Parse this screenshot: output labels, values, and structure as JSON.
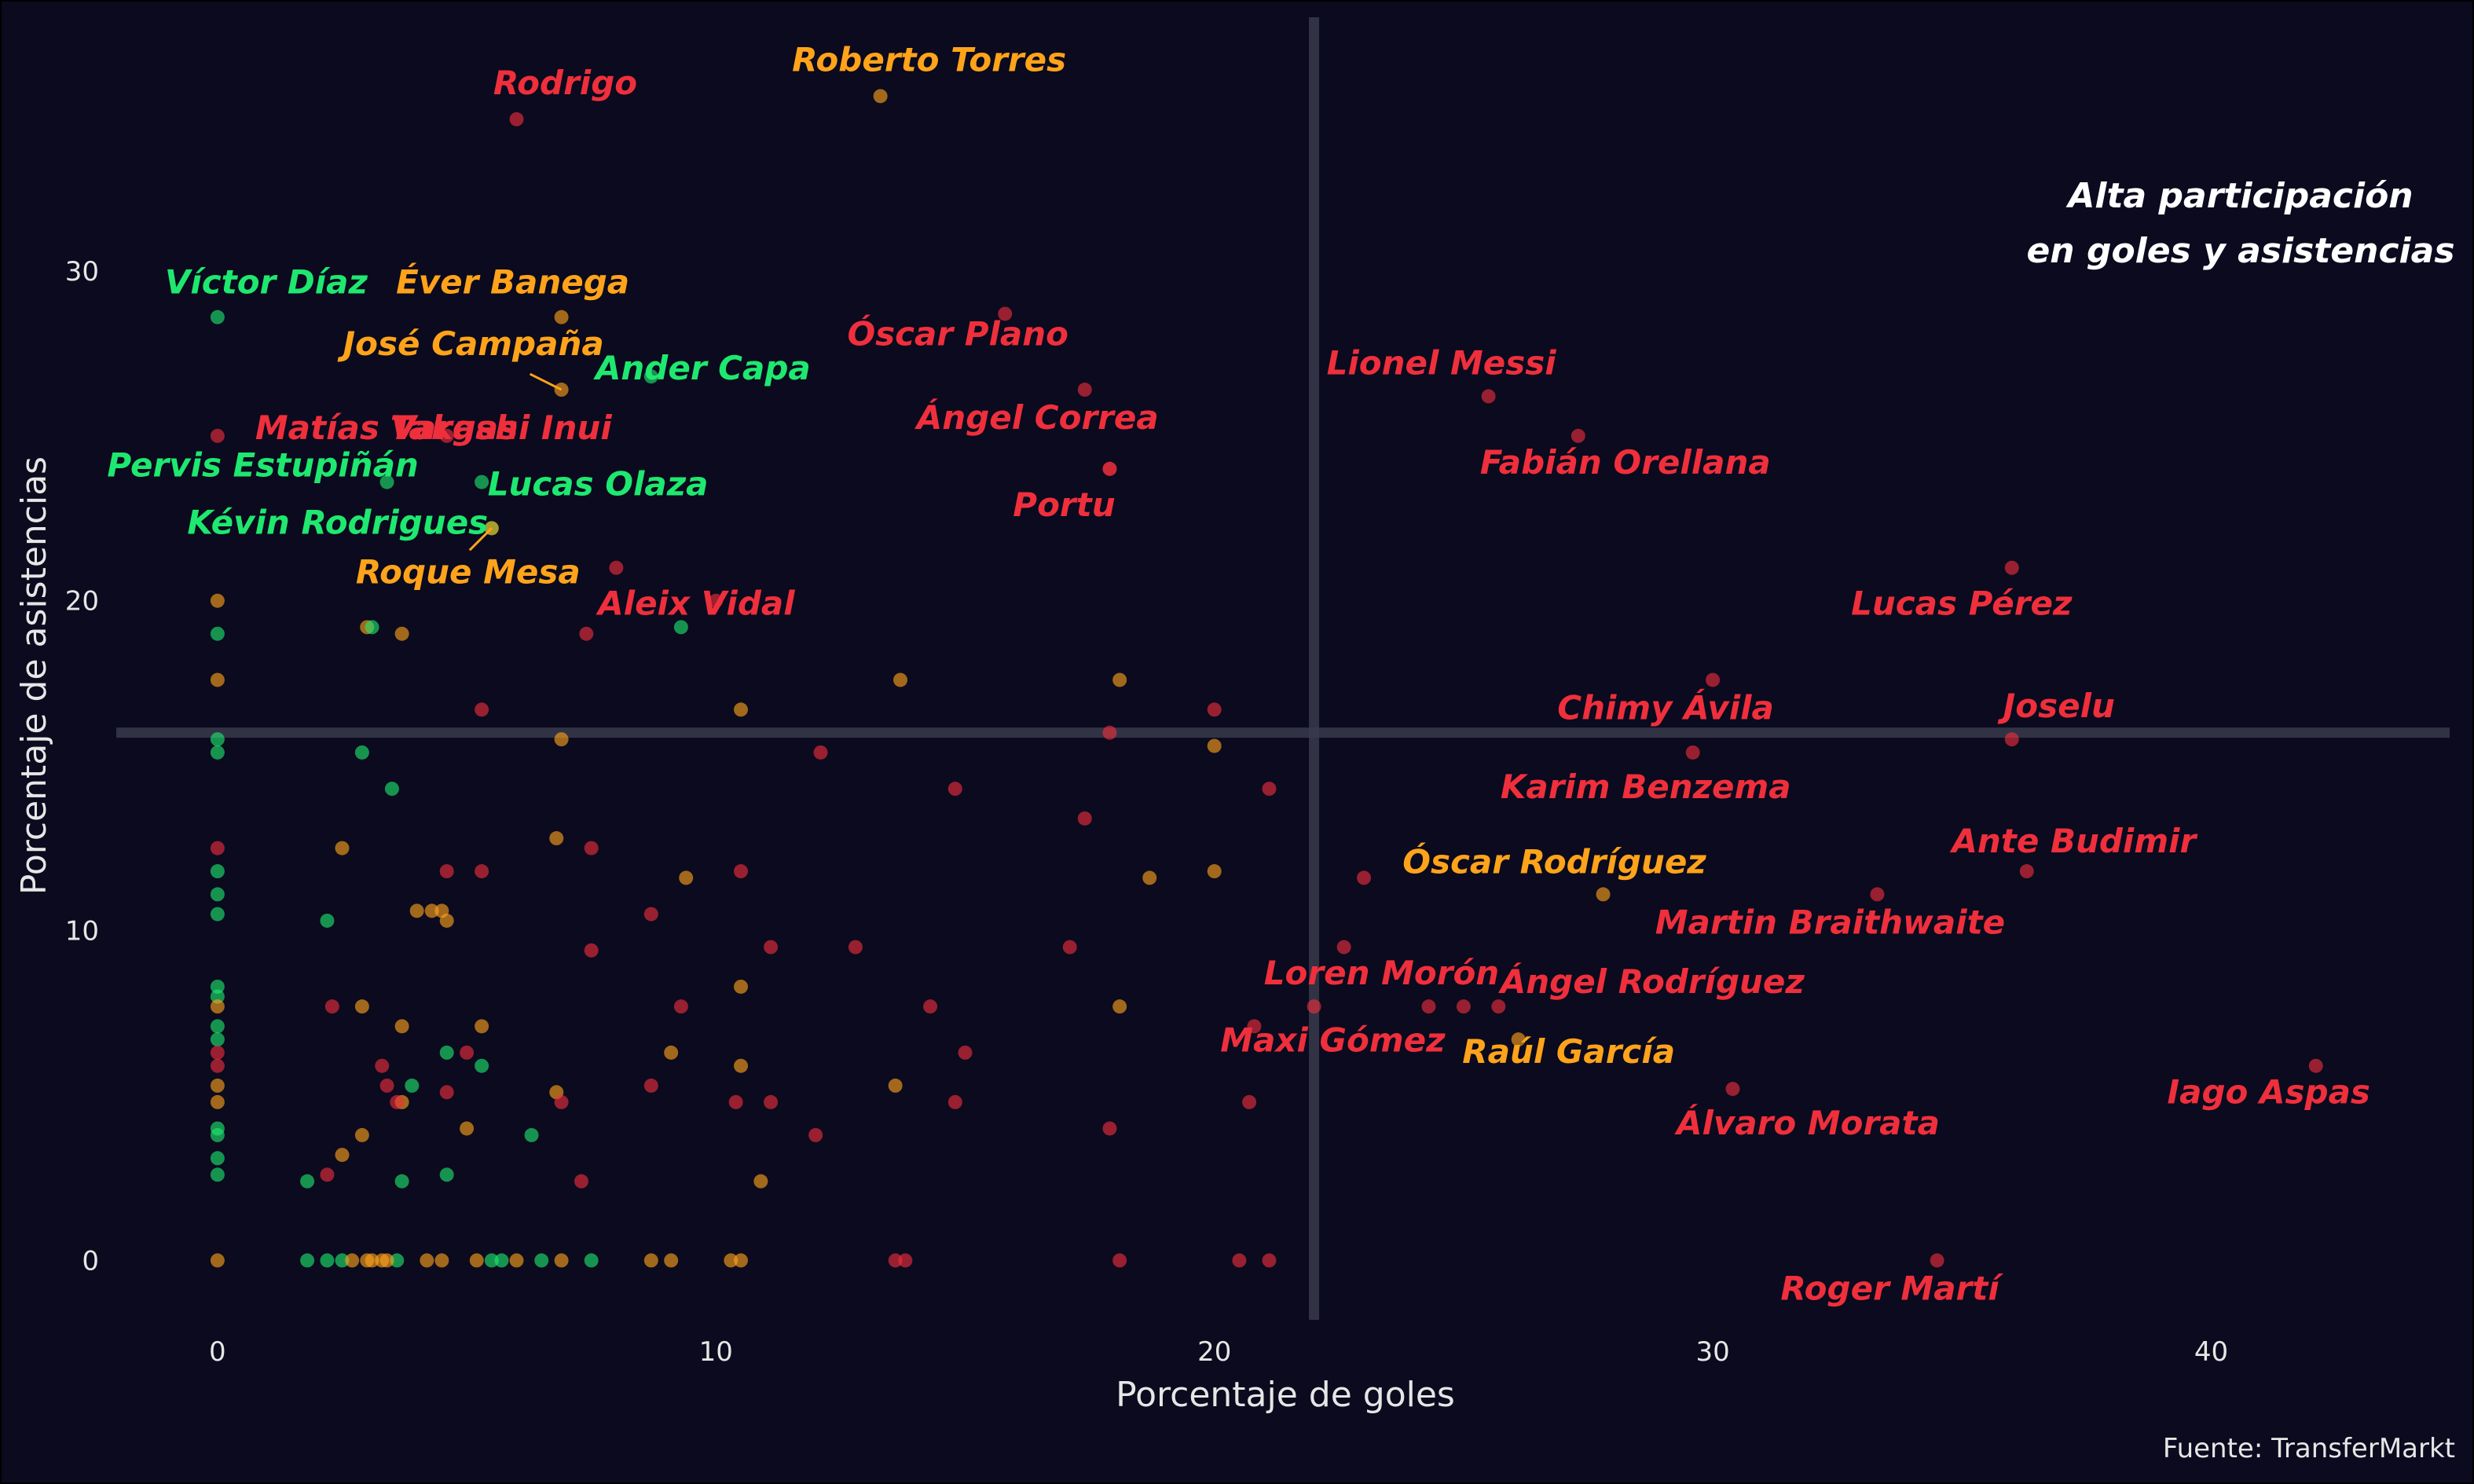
{
  "chart_data": {
    "type": "scatter",
    "xlabel": "Porcentaje de goles",
    "ylabel": "Porcentaje de asistencias",
    "xlim": [
      -2,
      44.5
    ],
    "ylim": [
      -1.8,
      37.5
    ],
    "x_ticks": [
      0,
      10,
      20,
      30,
      40
    ],
    "y_ticks": [
      0,
      10,
      20,
      30
    ],
    "grid": false,
    "reference_lines": {
      "x": 22,
      "y": 16
    },
    "annotation": [
      "Alta participación",
      "en goles y asistencias"
    ],
    "caption": "Fuente: TransferMarkt",
    "colors": {
      "red": "#ef2f3c",
      "orange": "#ffa31a",
      "green": "#1ee86f",
      "background": "#0b0a1e"
    },
    "labeled_points": [
      {
        "name": "Roberto Torres",
        "x": 13.3,
        "y": 35.3,
        "color": "orange"
      },
      {
        "name": "Rodrigo",
        "x": 6.0,
        "y": 34.6,
        "color": "red"
      },
      {
        "name": "Víctor Díaz",
        "x": 0.0,
        "y": 28.6,
        "color": "green"
      },
      {
        "name": "Éver Banega",
        "x": 6.9,
        "y": 28.6,
        "color": "orange"
      },
      {
        "name": "Óscar Plano",
        "x": 15.8,
        "y": 28.7,
        "color": "red"
      },
      {
        "name": "José Campaña",
        "x": 6.9,
        "y": 26.4,
        "color": "orange"
      },
      {
        "name": "Ander Capa",
        "x": 8.7,
        "y": 26.8,
        "color": "green"
      },
      {
        "name": "Lionel Messi",
        "x": 25.5,
        "y": 26.2,
        "color": "red"
      },
      {
        "name": "Ángel Correa",
        "x": 17.4,
        "y": 26.4,
        "color": "red"
      },
      {
        "name": "Matías Vargas",
        "x": 0.0,
        "y": 25.0,
        "color": "red"
      },
      {
        "name": "Takashi Inui",
        "x": 4.6,
        "y": 25.0,
        "color": "red"
      },
      {
        "name": "Fabián Orellana",
        "x": 27.3,
        "y": 25.0,
        "color": "red"
      },
      {
        "name": "Pervis Estupiñán",
        "x": 3.4,
        "y": 23.6,
        "color": "green"
      },
      {
        "name": "Lucas Olaza",
        "x": 5.3,
        "y": 23.6,
        "color": "green"
      },
      {
        "name": "Portu",
        "x": 17.9,
        "y": 24.0,
        "color": "red"
      },
      {
        "name": "Kévin Rodrigues",
        "x": 5.5,
        "y": 22.2,
        "color": "green"
      },
      {
        "name": "Roque Mesa",
        "x": 5.5,
        "y": 22.2,
        "color": "orange"
      },
      {
        "name": "Aleix Vidal",
        "x": 8.0,
        "y": 21.0,
        "color": "red"
      },
      {
        "name": "Lucas Pérez",
        "x": 36.0,
        "y": 21.0,
        "color": "red"
      },
      {
        "name": "Chimy Ávila",
        "x": 30.0,
        "y": 17.6,
        "color": "red"
      },
      {
        "name": "Joselu",
        "x": 36.0,
        "y": 15.8,
        "color": "red"
      },
      {
        "name": "Karim Benzema",
        "x": 29.6,
        "y": 15.4,
        "color": "red"
      },
      {
        "name": "Ante Budimir",
        "x": 36.3,
        "y": 11.8,
        "color": "red"
      },
      {
        "name": "Óscar Rodríguez",
        "x": 27.8,
        "y": 11.1,
        "color": "orange"
      },
      {
        "name": "Martin Braithwaite",
        "x": 33.3,
        "y": 11.1,
        "color": "red"
      },
      {
        "name": "Loren Morón",
        "x": 24.3,
        "y": 7.7,
        "color": "red"
      },
      {
        "name": "Ángel Rodríguez",
        "x": 25.7,
        "y": 7.7,
        "color": "red"
      },
      {
        "name": "Maxi Gómez",
        "x": 20.8,
        "y": 7.1,
        "color": "red"
      },
      {
        "name": "Raúl García",
        "x": 26.1,
        "y": 6.7,
        "color": "orange"
      },
      {
        "name": "Iago Aspas",
        "x": 42.1,
        "y": 5.9,
        "color": "red"
      },
      {
        "name": "Álvaro Morata",
        "x": 30.4,
        "y": 5.2,
        "color": "red"
      },
      {
        "name": "Roger Martí",
        "x": 34.5,
        "y": 0.0,
        "color": "red"
      }
    ],
    "points": [
      {
        "x": 22.0,
        "y": 7.7,
        "color": "red"
      },
      {
        "x": 22.6,
        "y": 9.5,
        "color": "red"
      },
      {
        "x": 23.0,
        "y": 11.6,
        "color": "red"
      },
      {
        "x": 25.0,
        "y": 7.7,
        "color": "red"
      },
      {
        "x": 20.0,
        "y": 16.7,
        "color": "red"
      },
      {
        "x": 21.1,
        "y": 14.3,
        "color": "red"
      },
      {
        "x": 20.0,
        "y": 15.6,
        "color": "orange"
      },
      {
        "x": 20.0,
        "y": 11.8,
        "color": "orange"
      },
      {
        "x": 20.7,
        "y": 4.8,
        "color": "red"
      },
      {
        "x": 20.5,
        "y": 0.0,
        "color": "red"
      },
      {
        "x": 21.1,
        "y": 0.0,
        "color": "red"
      },
      {
        "x": 18.1,
        "y": 17.6,
        "color": "orange"
      },
      {
        "x": 17.9,
        "y": 16.0,
        "color": "red"
      },
      {
        "x": 18.1,
        "y": 7.7,
        "color": "orange"
      },
      {
        "x": 17.9,
        "y": 4.0,
        "color": "red"
      },
      {
        "x": 18.1,
        "y": 0.0,
        "color": "red"
      },
      {
        "x": 17.9,
        "y": 24.0,
        "color": "red"
      },
      {
        "x": 18.7,
        "y": 11.6,
        "color": "orange"
      },
      {
        "x": 17.4,
        "y": 13.4,
        "color": "red"
      },
      {
        "x": 17.1,
        "y": 9.5,
        "color": "red"
      },
      {
        "x": 14.8,
        "y": 14.3,
        "color": "red"
      },
      {
        "x": 14.3,
        "y": 7.7,
        "color": "red"
      },
      {
        "x": 15.0,
        "y": 6.3,
        "color": "red"
      },
      {
        "x": 14.8,
        "y": 4.8,
        "color": "red"
      },
      {
        "x": 13.7,
        "y": 17.6,
        "color": "orange"
      },
      {
        "x": 13.6,
        "y": 5.3,
        "color": "orange"
      },
      {
        "x": 13.6,
        "y": 0.0,
        "color": "red"
      },
      {
        "x": 13.8,
        "y": 0.0,
        "color": "red"
      },
      {
        "x": 12.1,
        "y": 15.4,
        "color": "red"
      },
      {
        "x": 12.8,
        "y": 9.5,
        "color": "red"
      },
      {
        "x": 12.0,
        "y": 3.8,
        "color": "red"
      },
      {
        "x": 10.5,
        "y": 16.7,
        "color": "orange"
      },
      {
        "x": 10.5,
        "y": 11.8,
        "color": "red"
      },
      {
        "x": 10.5,
        "y": 8.3,
        "color": "orange"
      },
      {
        "x": 10.5,
        "y": 5.9,
        "color": "orange"
      },
      {
        "x": 10.4,
        "y": 4.8,
        "color": "red"
      },
      {
        "x": 11.1,
        "y": 9.5,
        "color": "red"
      },
      {
        "x": 11.1,
        "y": 4.8,
        "color": "red"
      },
      {
        "x": 10.9,
        "y": 2.4,
        "color": "orange"
      },
      {
        "x": 10.3,
        "y": 0.0,
        "color": "orange"
      },
      {
        "x": 10.5,
        "y": 0.0,
        "color": "orange"
      },
      {
        "x": 10.0,
        "y": 20.0,
        "color": "red"
      },
      {
        "x": 9.3,
        "y": 19.2,
        "color": "green"
      },
      {
        "x": 9.4,
        "y": 11.6,
        "color": "orange"
      },
      {
        "x": 9.3,
        "y": 7.7,
        "color": "red"
      },
      {
        "x": 9.1,
        "y": 6.3,
        "color": "orange"
      },
      {
        "x": 8.7,
        "y": 5.3,
        "color": "red"
      },
      {
        "x": 8.7,
        "y": 10.5,
        "color": "red"
      },
      {
        "x": 8.7,
        "y": 0.0,
        "color": "orange"
      },
      {
        "x": 9.1,
        "y": 0.0,
        "color": "orange"
      },
      {
        "x": 7.4,
        "y": 19.0,
        "color": "red"
      },
      {
        "x": 7.5,
        "y": 12.5,
        "color": "red"
      },
      {
        "x": 7.5,
        "y": 9.4,
        "color": "red"
      },
      {
        "x": 6.9,
        "y": 15.8,
        "color": "orange"
      },
      {
        "x": 6.8,
        "y": 12.8,
        "color": "orange"
      },
      {
        "x": 6.8,
        "y": 5.1,
        "color": "orange"
      },
      {
        "x": 6.9,
        "y": 4.8,
        "color": "red"
      },
      {
        "x": 7.3,
        "y": 2.4,
        "color": "red"
      },
      {
        "x": 6.9,
        "y": 0.0,
        "color": "orange"
      },
      {
        "x": 7.5,
        "y": 0.0,
        "color": "green"
      },
      {
        "x": 6.5,
        "y": 0.0,
        "color": "green"
      },
      {
        "x": 6.3,
        "y": 3.8,
        "color": "green"
      },
      {
        "x": 6.0,
        "y": 0.0,
        "color": "orange"
      },
      {
        "x": 5.3,
        "y": 16.7,
        "color": "red"
      },
      {
        "x": 5.3,
        "y": 11.8,
        "color": "red"
      },
      {
        "x": 5.3,
        "y": 7.1,
        "color": "orange"
      },
      {
        "x": 5.3,
        "y": 5.9,
        "color": "green"
      },
      {
        "x": 5.0,
        "y": 4.0,
        "color": "orange"
      },
      {
        "x": 5.0,
        "y": 6.3,
        "color": "red"
      },
      {
        "x": 5.5,
        "y": 0.0,
        "color": "green"
      },
      {
        "x": 5.7,
        "y": 0.0,
        "color": "green"
      },
      {
        "x": 5.2,
        "y": 0.0,
        "color": "orange"
      },
      {
        "x": 4.6,
        "y": 11.8,
        "color": "red"
      },
      {
        "x": 4.6,
        "y": 10.3,
        "color": "orange"
      },
      {
        "x": 4.3,
        "y": 10.6,
        "color": "orange"
      },
      {
        "x": 4.5,
        "y": 10.6,
        "color": "orange"
      },
      {
        "x": 4.6,
        "y": 6.3,
        "color": "green"
      },
      {
        "x": 4.6,
        "y": 5.1,
        "color": "red"
      },
      {
        "x": 4.6,
        "y": 2.6,
        "color": "green"
      },
      {
        "x": 4.5,
        "y": 0.0,
        "color": "orange"
      },
      {
        "x": 4.2,
        "y": 0.0,
        "color": "orange"
      },
      {
        "x": 4.0,
        "y": 10.6,
        "color": "orange"
      },
      {
        "x": 3.9,
        "y": 5.3,
        "color": "green"
      },
      {
        "x": 3.7,
        "y": 7.1,
        "color": "orange"
      },
      {
        "x": 3.7,
        "y": 4.8,
        "color": "orange"
      },
      {
        "x": 3.6,
        "y": 4.8,
        "color": "red"
      },
      {
        "x": 3.4,
        "y": 5.3,
        "color": "red"
      },
      {
        "x": 3.3,
        "y": 5.9,
        "color": "red"
      },
      {
        "x": 3.7,
        "y": 19.0,
        "color": "orange"
      },
      {
        "x": 3.5,
        "y": 14.3,
        "color": "green"
      },
      {
        "x": 3.7,
        "y": 2.4,
        "color": "green"
      },
      {
        "x": 3.6,
        "y": 0.0,
        "color": "green"
      },
      {
        "x": 3.3,
        "y": 0.0,
        "color": "orange"
      },
      {
        "x": 3.4,
        "y": 0.0,
        "color": "orange"
      },
      {
        "x": 3.0,
        "y": 19.2,
        "color": "orange"
      },
      {
        "x": 3.1,
        "y": 19.2,
        "color": "green"
      },
      {
        "x": 2.9,
        "y": 15.4,
        "color": "green"
      },
      {
        "x": 2.9,
        "y": 7.7,
        "color": "orange"
      },
      {
        "x": 2.9,
        "y": 3.8,
        "color": "orange"
      },
      {
        "x": 3.0,
        "y": 0.0,
        "color": "orange"
      },
      {
        "x": 3.1,
        "y": 0.0,
        "color": "orange"
      },
      {
        "x": 2.5,
        "y": 12.5,
        "color": "orange"
      },
      {
        "x": 2.2,
        "y": 10.3,
        "color": "green"
      },
      {
        "x": 2.3,
        "y": 7.7,
        "color": "red"
      },
      {
        "x": 2.2,
        "y": 2.6,
        "color": "red"
      },
      {
        "x": 2.5,
        "y": 3.2,
        "color": "orange"
      },
      {
        "x": 1.8,
        "y": 2.4,
        "color": "green"
      },
      {
        "x": 1.8,
        "y": 0.0,
        "color": "green"
      },
      {
        "x": 2.2,
        "y": 0.0,
        "color": "green"
      },
      {
        "x": 2.5,
        "y": 0.0,
        "color": "green"
      },
      {
        "x": 2.7,
        "y": 0.0,
        "color": "orange"
      },
      {
        "x": 0.0,
        "y": 20.0,
        "color": "orange"
      },
      {
        "x": 0.0,
        "y": 19.0,
        "color": "green"
      },
      {
        "x": 0.0,
        "y": 17.6,
        "color": "orange"
      },
      {
        "x": 0.0,
        "y": 15.8,
        "color": "green"
      },
      {
        "x": 0.0,
        "y": 15.4,
        "color": "green"
      },
      {
        "x": 0.0,
        "y": 12.5,
        "color": "red"
      },
      {
        "x": 0.0,
        "y": 11.8,
        "color": "green"
      },
      {
        "x": 0.0,
        "y": 11.1,
        "color": "green"
      },
      {
        "x": 0.0,
        "y": 10.5,
        "color": "green"
      },
      {
        "x": 0.0,
        "y": 8.3,
        "color": "green"
      },
      {
        "x": 0.0,
        "y": 8.0,
        "color": "green"
      },
      {
        "x": 0.0,
        "y": 7.7,
        "color": "orange"
      },
      {
        "x": 0.0,
        "y": 7.1,
        "color": "green"
      },
      {
        "x": 0.0,
        "y": 6.7,
        "color": "green"
      },
      {
        "x": 0.0,
        "y": 6.3,
        "color": "red"
      },
      {
        "x": 0.0,
        "y": 5.9,
        "color": "red"
      },
      {
        "x": 0.0,
        "y": 5.3,
        "color": "orange"
      },
      {
        "x": 0.0,
        "y": 4.8,
        "color": "orange"
      },
      {
        "x": 0.0,
        "y": 4.0,
        "color": "green"
      },
      {
        "x": 0.0,
        "y": 3.8,
        "color": "green"
      },
      {
        "x": 0.0,
        "y": 3.1,
        "color": "green"
      },
      {
        "x": 0.0,
        "y": 2.6,
        "color": "green"
      },
      {
        "x": 0.0,
        "y": 0.0,
        "color": "orange"
      }
    ]
  }
}
